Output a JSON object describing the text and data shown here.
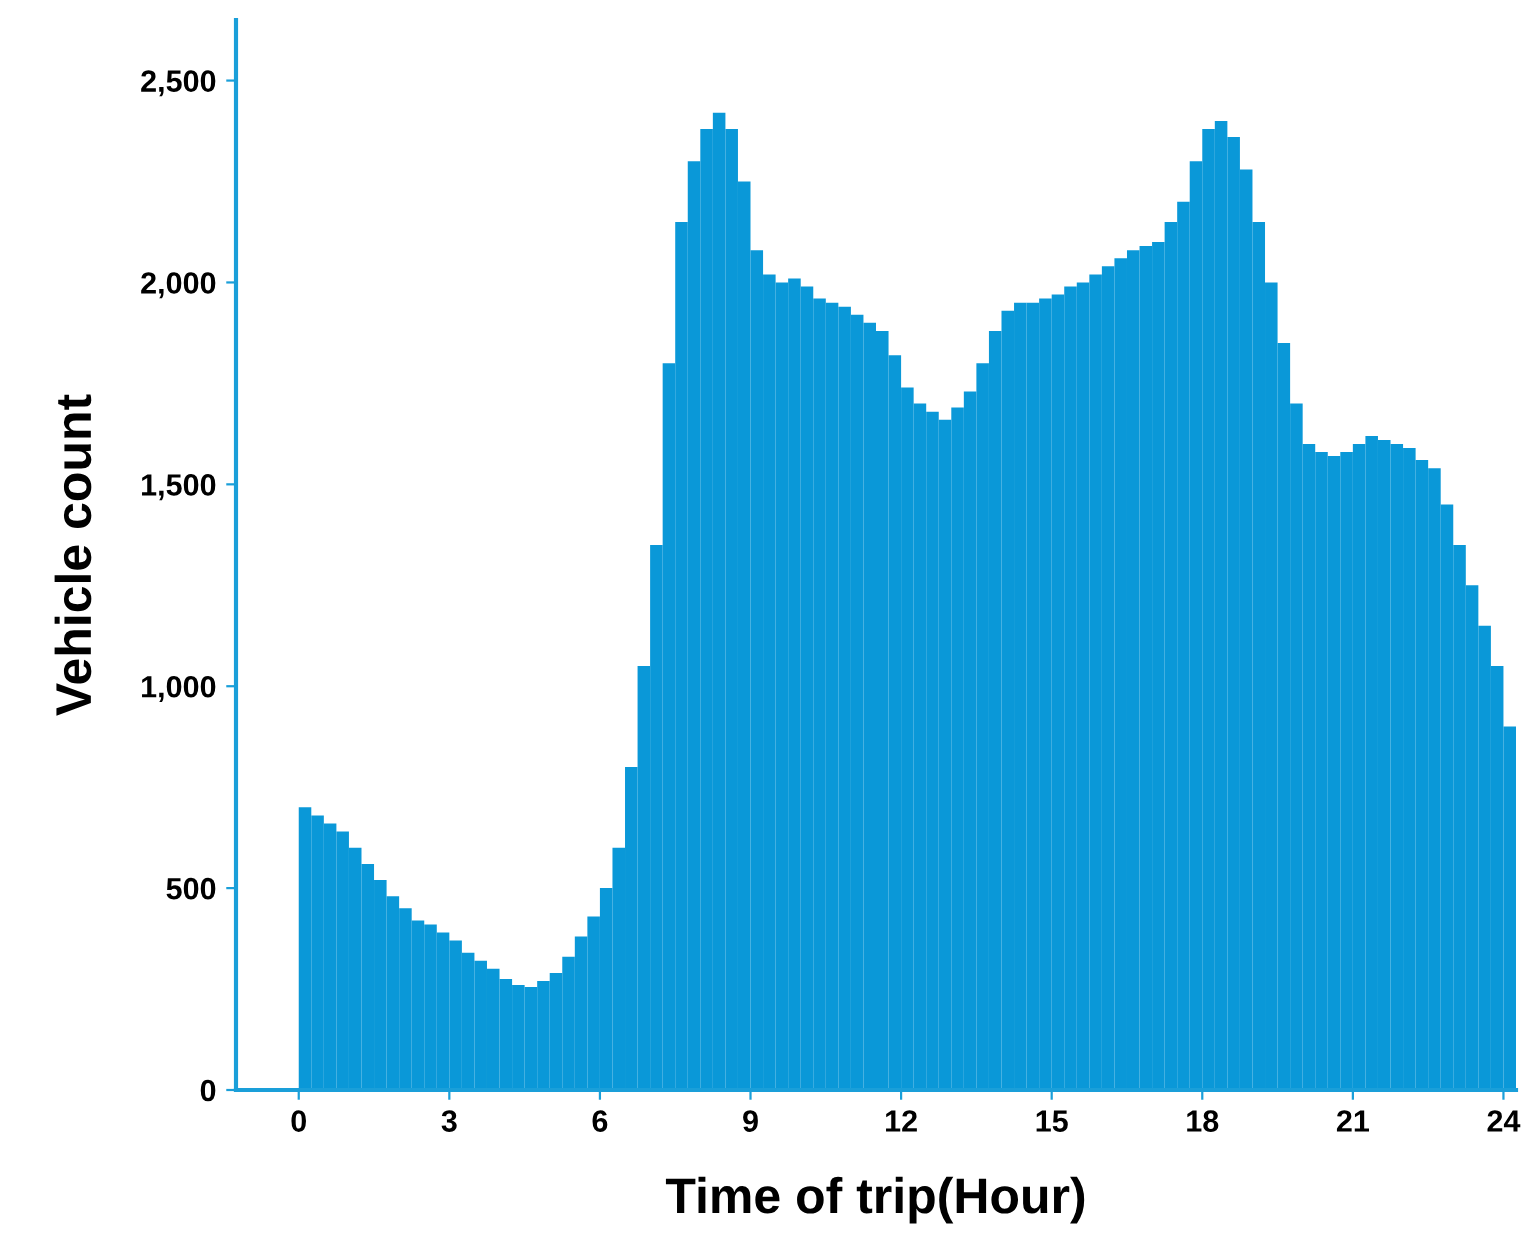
{
  "chart_data": {
    "type": "histogram",
    "xlabel": "Time of trip(Hour)",
    "ylabel": "Vehicle count",
    "bins": [
      0,
      0.25,
      0.5,
      0.75,
      1,
      1.25,
      1.5,
      1.75,
      2,
      2.25,
      2.5,
      2.75,
      3,
      3.25,
      3.5,
      3.75,
      4,
      4.25,
      4.5,
      4.75,
      5,
      5.25,
      5.5,
      5.75,
      6,
      6.25,
      6.5,
      6.75,
      7,
      7.25,
      7.5,
      7.75,
      8,
      8.25,
      8.5,
      8.75,
      9,
      9.25,
      9.5,
      9.75,
      10,
      10.25,
      10.5,
      10.75,
      11,
      11.25,
      11.5,
      11.75,
      12,
      12.25,
      12.5,
      12.75,
      13,
      13.25,
      13.5,
      13.75,
      14,
      14.25,
      14.5,
      14.75,
      15,
      15.25,
      15.5,
      15.75,
      16,
      16.25,
      16.5,
      16.75,
      17,
      17.25,
      17.5,
      17.75,
      18,
      18.25,
      18.5,
      18.75,
      19,
      19.25,
      19.5,
      19.75,
      20,
      20.25,
      20.5,
      20.75,
      21,
      21.25,
      21.5,
      21.75,
      22,
      22.25,
      22.5,
      22.75,
      23,
      23.25,
      23.5,
      23.75,
      24,
      24.25
    ],
    "values": [
      700,
      680,
      660,
      640,
      600,
      560,
      520,
      480,
      450,
      420,
      410,
      390,
      370,
      340,
      320,
      300,
      275,
      260,
      255,
      270,
      290,
      330,
      380,
      430,
      500,
      600,
      800,
      1050,
      1350,
      1800,
      2150,
      2300,
      2380,
      2420,
      2380,
      2250,
      2080,
      2020,
      2000,
      2010,
      1990,
      1960,
      1950,
      1940,
      1920,
      1900,
      1880,
      1820,
      1740,
      1700,
      1680,
      1660,
      1690,
      1730,
      1800,
      1880,
      1930,
      1950,
      1950,
      1960,
      1970,
      1990,
      2000,
      2020,
      2040,
      2060,
      2080,
      2090,
      2100,
      2150,
      2200,
      2300,
      2380,
      2400,
      2360,
      2280,
      2150,
      2000,
      1850,
      1700,
      1600,
      1580,
      1570,
      1580,
      1600,
      1620,
      1610,
      1600,
      1590,
      1560,
      1540,
      1450,
      1350,
      1250,
      1150,
      1050,
      900
    ],
    "color": "#0a98d8",
    "xlim": [
      -1.25,
      24.25
    ],
    "xticks": [
      0,
      3,
      6,
      9,
      12,
      15,
      18,
      21,
      24
    ],
    "ylim": [
      0,
      2650
    ],
    "yticks": [
      0,
      500,
      {
        "value": 1000,
        "label": "1,000"
      },
      {
        "value": 1500,
        "label": "1,500"
      },
      {
        "value": 2000,
        "label": "2,000"
      },
      {
        "value": 2500,
        "label": "2,500"
      }
    ],
    "grid": false,
    "legend": false
  }
}
